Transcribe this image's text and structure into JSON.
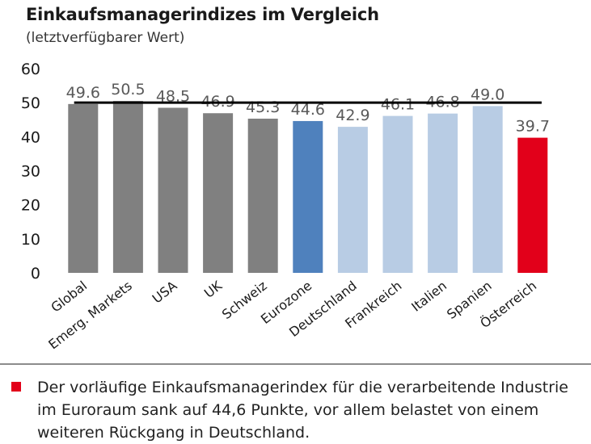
{
  "title": "Einkaufsmanagerindizes im Vergleich",
  "subtitle": "(letztverfügbarer Wert)",
  "footnote": "Der vorläufige Einkaufsmanagerindex für die verarbeitende Industrie im Euroraum sank auf 44,6 Punkte, vor allem belastet von einem weiteren Rückgang in Deutschland.",
  "colors": {
    "gray": "#808080",
    "eurozone": "#4f81bd",
    "euro_members": "#b8cce4",
    "austria": "#e2001a",
    "reference_line": "#000000",
    "note_marker": "#e2001a"
  },
  "chart_data": {
    "type": "bar",
    "title": "Einkaufsmanagerindizes im Vergleich",
    "subtitle": "(letztverfügbarer Wert)",
    "categories": [
      "Global",
      "Emerg. Markets",
      "USA",
      "UK",
      "Schweiz",
      "Eurozone",
      "Deutschland",
      "Frankreich",
      "Italien",
      "Spanien",
      "Österreich"
    ],
    "values": [
      49.6,
      50.5,
      48.5,
      46.9,
      45.3,
      44.6,
      42.9,
      46.1,
      46.8,
      49.0,
      39.7
    ],
    "value_labels": [
      "49.6",
      "50.5",
      "48.5",
      "46.9",
      "45.3",
      "44.6",
      "42.9",
      "46.1",
      "46.8",
      "49.0",
      "39.7"
    ],
    "bar_colors": [
      "gray",
      "gray",
      "gray",
      "gray",
      "gray",
      "eurozone",
      "euro_members",
      "euro_members",
      "euro_members",
      "euro_members",
      "austria"
    ],
    "ylim": [
      0,
      60
    ],
    "yticks": [
      0,
      10,
      20,
      30,
      40,
      50,
      60
    ],
    "reference_line": 50,
    "grid": false,
    "legend": "none",
    "xlabel": "",
    "ylabel": ""
  }
}
